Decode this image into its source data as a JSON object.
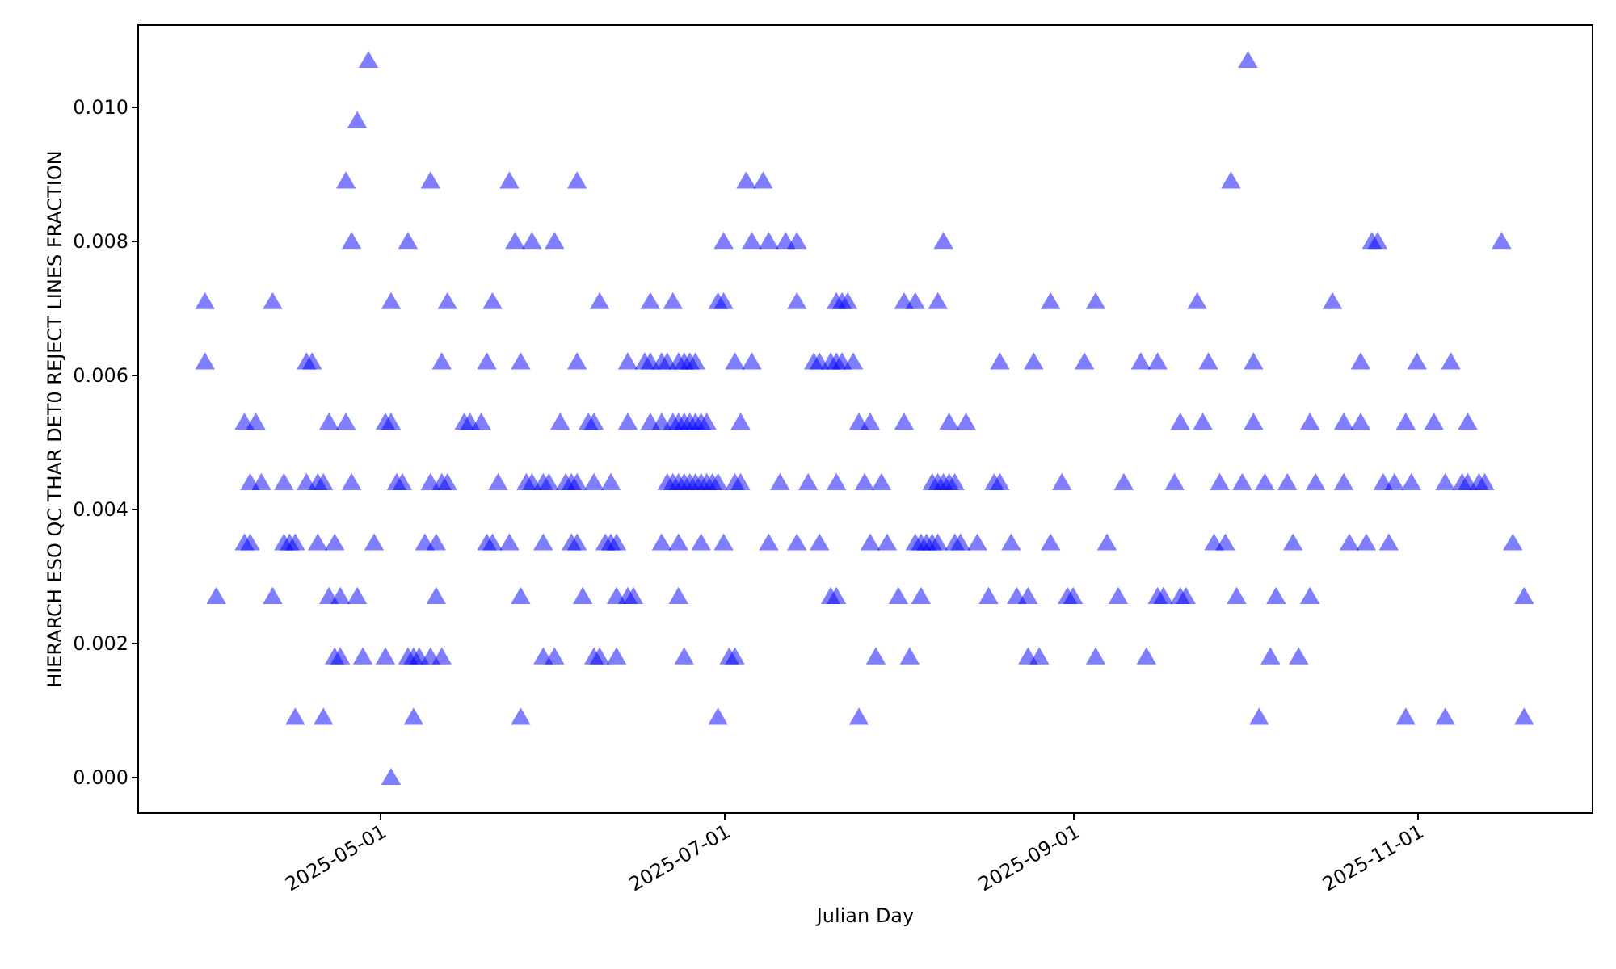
{
  "chart_data": {
    "type": "scatter",
    "xlabel": "Julian Day",
    "ylabel": "HIERARCH ESO QC THAR DET0 REJECT LINES FRACTION",
    "xlim": [
      "2025-03-19",
      "2025-12-02"
    ],
    "xticks": [
      "2025-05-01",
      "2025-07-01",
      "2025-09-01",
      "2025-11-01"
    ],
    "ylim": [
      -0.00053,
      0.01123
    ],
    "yticks": [
      {
        "value": 0,
        "label": "0.000"
      },
      {
        "value": 0.002,
        "label": "0.002"
      },
      {
        "value": 0.004,
        "label": "0.004"
      },
      {
        "value": 0.006,
        "label": "0.006"
      },
      {
        "value": 0.008,
        "label": "0.008"
      },
      {
        "value": 0.01,
        "label": "0.010"
      }
    ],
    "grid": false,
    "marker": "triangle",
    "series": [
      {
        "color": "#0000ff",
        "x": [
          "2025-04-29",
          "2025-10-02",
          "2025-04-27",
          "2025-04-25",
          "2025-05-10",
          "2025-05-24",
          "2025-06-05",
          "2025-07-05",
          "2025-07-08",
          "2025-09-29",
          "2025-04-26",
          "2025-05-06",
          "2025-05-25",
          "2025-05-28",
          "2025-06-01",
          "2025-07-01",
          "2025-07-06",
          "2025-07-09",
          "2025-07-12",
          "2025-07-14",
          "2025-08-09",
          "2025-10-24",
          "2025-10-25",
          "2025-11-16",
          "2025-03-31",
          "2025-04-12",
          "2025-05-03",
          "2025-05-13",
          "2025-05-21",
          "2025-06-09",
          "2025-06-18",
          "2025-06-22",
          "2025-06-30",
          "2025-07-01",
          "2025-07-14",
          "2025-07-21",
          "2025-07-22",
          "2025-07-23",
          "2025-08-02",
          "2025-08-04",
          "2025-08-08",
          "2025-08-28",
          "2025-09-05",
          "2025-09-23",
          "2025-10-17",
          "2025-03-31",
          "2025-04-18",
          "2025-04-19",
          "2025-05-12",
          "2025-05-20",
          "2025-05-26",
          "2025-06-05",
          "2025-06-14",
          "2025-06-17",
          "2025-06-18",
          "2025-06-20",
          "2025-06-21",
          "2025-06-23",
          "2025-06-24",
          "2025-06-25",
          "2025-06-26",
          "2025-07-03",
          "2025-07-06",
          "2025-07-17",
          "2025-07-18",
          "2025-07-20",
          "2025-07-21",
          "2025-07-22",
          "2025-07-24",
          "2025-08-19",
          "2025-08-25",
          "2025-09-03",
          "2025-09-13",
          "2025-09-16",
          "2025-09-25",
          "2025-10-03",
          "2025-10-22",
          "2025-11-01",
          "2025-11-07",
          "2025-04-07",
          "2025-04-09",
          "2025-04-22",
          "2025-04-25",
          "2025-05-02",
          "2025-05-03",
          "2025-05-16",
          "2025-05-17",
          "2025-05-19",
          "2025-06-02",
          "2025-06-07",
          "2025-06-08",
          "2025-06-14",
          "2025-06-18",
          "2025-06-20",
          "2025-06-22",
          "2025-06-23",
          "2025-06-24",
          "2025-06-25",
          "2025-06-26",
          "2025-06-27",
          "2025-06-28",
          "2025-07-04",
          "2025-07-25",
          "2025-07-27",
          "2025-08-02",
          "2025-08-10",
          "2025-08-13",
          "2025-09-20",
          "2025-09-24",
          "2025-10-03",
          "2025-10-13",
          "2025-10-19",
          "2025-10-22",
          "2025-10-30",
          "2025-11-04",
          "2025-11-10",
          "2025-04-08",
          "2025-04-10",
          "2025-04-14",
          "2025-04-18",
          "2025-04-20",
          "2025-04-21",
          "2025-04-26",
          "2025-05-04",
          "2025-05-05",
          "2025-05-10",
          "2025-05-12",
          "2025-05-13",
          "2025-05-22",
          "2025-05-27",
          "2025-05-28",
          "2025-05-30",
          "2025-05-31",
          "2025-06-03",
          "2025-06-04",
          "2025-06-05",
          "2025-06-08",
          "2025-06-11",
          "2025-06-21",
          "2025-06-22",
          "2025-06-23",
          "2025-06-24",
          "2025-06-25",
          "2025-06-26",
          "2025-06-27",
          "2025-06-28",
          "2025-06-29",
          "2025-06-30",
          "2025-07-03",
          "2025-07-04",
          "2025-07-11",
          "2025-07-16",
          "2025-07-21",
          "2025-07-26",
          "2025-07-29",
          "2025-08-07",
          "2025-08-08",
          "2025-08-09",
          "2025-08-10",
          "2025-08-11",
          "2025-08-18",
          "2025-08-19",
          "2025-08-30",
          "2025-09-10",
          "2025-09-19",
          "2025-09-27",
          "2025-10-01",
          "2025-10-05",
          "2025-10-09",
          "2025-10-14",
          "2025-10-19",
          "2025-10-26",
          "2025-10-28",
          "2025-10-31",
          "2025-11-06",
          "2025-11-09",
          "2025-11-10",
          "2025-11-12",
          "2025-11-13",
          "2025-04-07",
          "2025-04-08",
          "2025-04-14",
          "2025-04-15",
          "2025-04-16",
          "2025-04-20",
          "2025-04-23",
          "2025-04-30",
          "2025-05-09",
          "2025-05-11",
          "2025-05-20",
          "2025-05-21",
          "2025-05-24",
          "2025-05-30",
          "2025-06-04",
          "2025-06-05",
          "2025-06-10",
          "2025-06-11",
          "2025-06-12",
          "2025-06-20",
          "2025-06-23",
          "2025-06-27",
          "2025-07-01",
          "2025-07-09",
          "2025-07-14",
          "2025-07-18",
          "2025-07-27",
          "2025-07-30",
          "2025-08-04",
          "2025-08-05",
          "2025-08-06",
          "2025-08-07",
          "2025-08-08",
          "2025-08-11",
          "2025-08-12",
          "2025-08-15",
          "2025-08-21",
          "2025-08-28",
          "2025-09-07",
          "2025-09-26",
          "2025-09-28",
          "2025-10-10",
          "2025-10-20",
          "2025-10-23",
          "2025-10-27",
          "2025-11-18",
          "2025-04-02",
          "2025-04-12",
          "2025-04-22",
          "2025-04-24",
          "2025-04-27",
          "2025-05-11",
          "2025-05-26",
          "2025-06-06",
          "2025-06-12",
          "2025-06-14",
          "2025-06-15",
          "2025-06-23",
          "2025-07-20",
          "2025-07-21",
          "2025-08-01",
          "2025-08-05",
          "2025-08-17",
          "2025-08-22",
          "2025-08-24",
          "2025-08-31",
          "2025-09-01",
          "2025-09-09",
          "2025-09-16",
          "2025-09-17",
          "2025-09-20",
          "2025-09-21",
          "2025-09-30",
          "2025-10-07",
          "2025-10-13",
          "2025-11-20",
          "2025-04-23",
          "2025-04-24",
          "2025-04-28",
          "2025-05-02",
          "2025-05-06",
          "2025-05-07",
          "2025-05-08",
          "2025-05-10",
          "2025-05-12",
          "2025-05-30",
          "2025-06-01",
          "2025-06-08",
          "2025-06-09",
          "2025-06-12",
          "2025-06-24",
          "2025-07-02",
          "2025-07-03",
          "2025-07-28",
          "2025-08-03",
          "2025-08-24",
          "2025-08-26",
          "2025-09-05",
          "2025-09-14",
          "2025-10-06",
          "2025-10-11",
          "2025-04-16",
          "2025-04-21",
          "2025-05-07",
          "2025-05-26",
          "2025-06-30",
          "2025-07-25",
          "2025-10-04",
          "2025-10-30",
          "2025-11-06",
          "2025-11-20",
          "2025-05-03"
        ],
        "values": [
          0.0107,
          0.0107,
          0.0098,
          0.0089,
          0.0089,
          0.0089,
          0.0089,
          0.0089,
          0.0089,
          0.0089,
          0.008,
          0.008,
          0.008,
          0.008,
          0.008,
          0.008,
          0.008,
          0.008,
          0.008,
          0.008,
          0.008,
          0.008,
          0.008,
          0.008,
          0.0071,
          0.0071,
          0.0071,
          0.0071,
          0.0071,
          0.0071,
          0.0071,
          0.0071,
          0.0071,
          0.0071,
          0.0071,
          0.0071,
          0.0071,
          0.0071,
          0.0071,
          0.0071,
          0.0071,
          0.0071,
          0.0071,
          0.0071,
          0.0071,
          0.0062,
          0.0062,
          0.0062,
          0.0062,
          0.0062,
          0.0062,
          0.0062,
          0.0062,
          0.0062,
          0.0062,
          0.0062,
          0.0062,
          0.0062,
          0.0062,
          0.0062,
          0.0062,
          0.0062,
          0.0062,
          0.0062,
          0.0062,
          0.0062,
          0.0062,
          0.0062,
          0.0062,
          0.0062,
          0.0062,
          0.0062,
          0.0062,
          0.0062,
          0.0062,
          0.0062,
          0.0062,
          0.0062,
          0.0062,
          0.0053,
          0.0053,
          0.0053,
          0.0053,
          0.0053,
          0.0053,
          0.0053,
          0.0053,
          0.0053,
          0.0053,
          0.0053,
          0.0053,
          0.0053,
          0.0053,
          0.0053,
          0.0053,
          0.0053,
          0.0053,
          0.0053,
          0.0053,
          0.0053,
          0.0053,
          0.0053,
          0.0053,
          0.0053,
          0.0053,
          0.0053,
          0.0053,
          0.0053,
          0.0053,
          0.0053,
          0.0053,
          0.0053,
          0.0053,
          0.0053,
          0.0053,
          0.0053,
          0.0044,
          0.0044,
          0.0044,
          0.0044,
          0.0044,
          0.0044,
          0.0044,
          0.0044,
          0.0044,
          0.0044,
          0.0044,
          0.0044,
          0.0044,
          0.0044,
          0.0044,
          0.0044,
          0.0044,
          0.0044,
          0.0044,
          0.0044,
          0.0044,
          0.0044,
          0.0044,
          0.0044,
          0.0044,
          0.0044,
          0.0044,
          0.0044,
          0.0044,
          0.0044,
          0.0044,
          0.0044,
          0.0044,
          0.0044,
          0.0044,
          0.0044,
          0.0044,
          0.0044,
          0.0044,
          0.0044,
          0.0044,
          0.0044,
          0.0044,
          0.0044,
          0.0044,
          0.0044,
          0.0044,
          0.0044,
          0.0044,
          0.0044,
          0.0044,
          0.0044,
          0.0044,
          0.0044,
          0.0044,
          0.0044,
          0.0044,
          0.0044,
          0.0044,
          0.0044,
          0.0044,
          0.0044,
          0.0044,
          0.0035,
          0.0035,
          0.0035,
          0.0035,
          0.0035,
          0.0035,
          0.0035,
          0.0035,
          0.0035,
          0.0035,
          0.0035,
          0.0035,
          0.0035,
          0.0035,
          0.0035,
          0.0035,
          0.0035,
          0.0035,
          0.0035,
          0.0035,
          0.0035,
          0.0035,
          0.0035,
          0.0035,
          0.0035,
          0.0035,
          0.0035,
          0.0035,
          0.0035,
          0.0035,
          0.0035,
          0.0035,
          0.0035,
          0.0035,
          0.0035,
          0.0035,
          0.0035,
          0.0035,
          0.0035,
          0.0035,
          0.0035,
          0.0035,
          0.0035,
          0.0035,
          0.0035,
          0.0035,
          0.0027,
          0.0027,
          0.0027,
          0.0027,
          0.0027,
          0.0027,
          0.0027,
          0.0027,
          0.0027,
          0.0027,
          0.0027,
          0.0027,
          0.0027,
          0.0027,
          0.0027,
          0.0027,
          0.0027,
          0.0027,
          0.0027,
          0.0027,
          0.0027,
          0.0027,
          0.0027,
          0.0027,
          0.0027,
          0.0027,
          0.0027,
          0.0027,
          0.0027,
          0.0027,
          0.0018,
          0.0018,
          0.0018,
          0.0018,
          0.0018,
          0.0018,
          0.0018,
          0.0018,
          0.0018,
          0.0018,
          0.0018,
          0.0018,
          0.0018,
          0.0018,
          0.0018,
          0.0018,
          0.0018,
          0.0018,
          0.0018,
          0.0018,
          0.0018,
          0.0018,
          0.0018,
          0.0018,
          0.0018,
          0.0009,
          0.0009,
          0.0009,
          0.0009,
          0.0009,
          0.0009,
          0.0009,
          0.0009,
          0.0009,
          0.0009,
          0.0
        ]
      }
    ]
  }
}
